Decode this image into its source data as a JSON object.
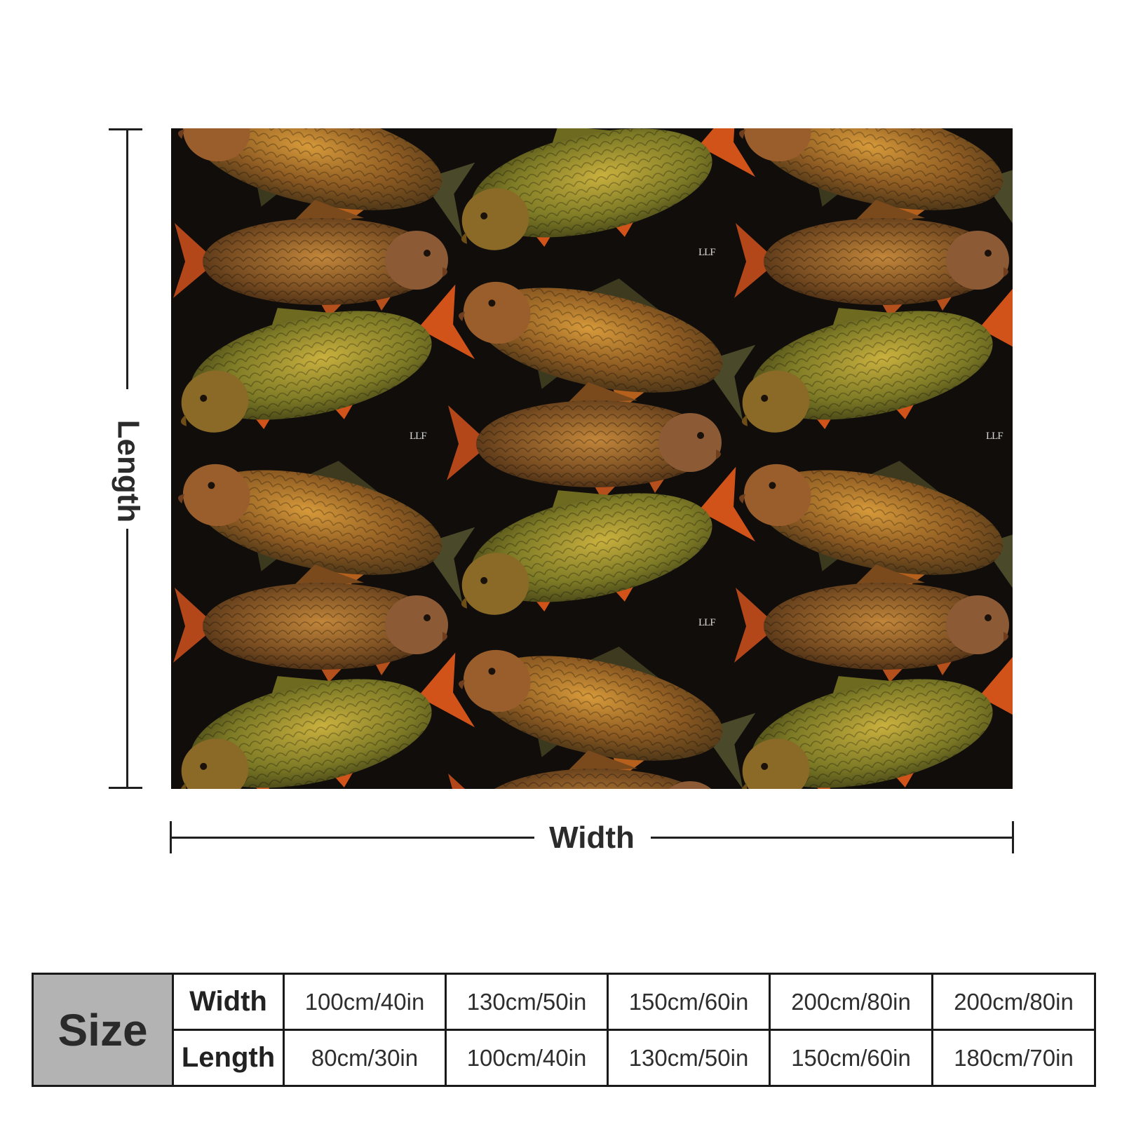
{
  "product": {
    "watermark": "LLF",
    "colors": {
      "blanket_background": "#100d0b",
      "carp_gold": "#8a7a2a",
      "carp_copper": "#8a5a2a",
      "fin_orange": "#d2531a",
      "size_cell_gray": "#b3b3b3"
    }
  },
  "dimensions": {
    "length_label": "Length",
    "width_label": "Width"
  },
  "size_chart": {
    "title": "Size",
    "row_labels": {
      "width": "Width",
      "length": "Length"
    },
    "widths": [
      "100cm/40in",
      "130cm/50in",
      "150cm/60in",
      "200cm/80in",
      "200cm/80in"
    ],
    "lengths": [
      "80cm/30in",
      "100cm/40in",
      "130cm/50in",
      "150cm/60in",
      "180cm/70in"
    ]
  }
}
